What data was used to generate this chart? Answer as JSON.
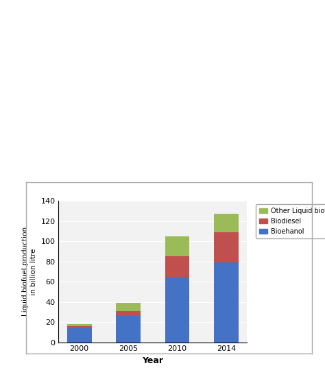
{
  "years": [
    "2000",
    "2005",
    "2010",
    "2014"
  ],
  "bioethanol": [
    14,
    26,
    65,
    79
  ],
  "biodiesel": [
    2,
    5,
    20,
    30
  ],
  "other": [
    2,
    8,
    20,
    18
  ],
  "colors": {
    "bioethanol": "#4472C4",
    "biodiesel": "#C0504D",
    "other": "#9BBB59"
  },
  "ylabel_line1": "Liquid biofuel production",
  "ylabel_line2": "in billion litre",
  "xlabel": "Year",
  "ylim": [
    0,
    140
  ],
  "yticks": [
    0,
    20,
    40,
    60,
    80,
    100,
    120,
    140
  ],
  "bar_width": 0.5,
  "background_color": "#f2f2f2",
  "fig_bg": "#ffffff",
  "grid_color": "#ffffff",
  "legend_labels": [
    "Other Liquid biofuels",
    "Biodiesel",
    "Bioehanol"
  ]
}
